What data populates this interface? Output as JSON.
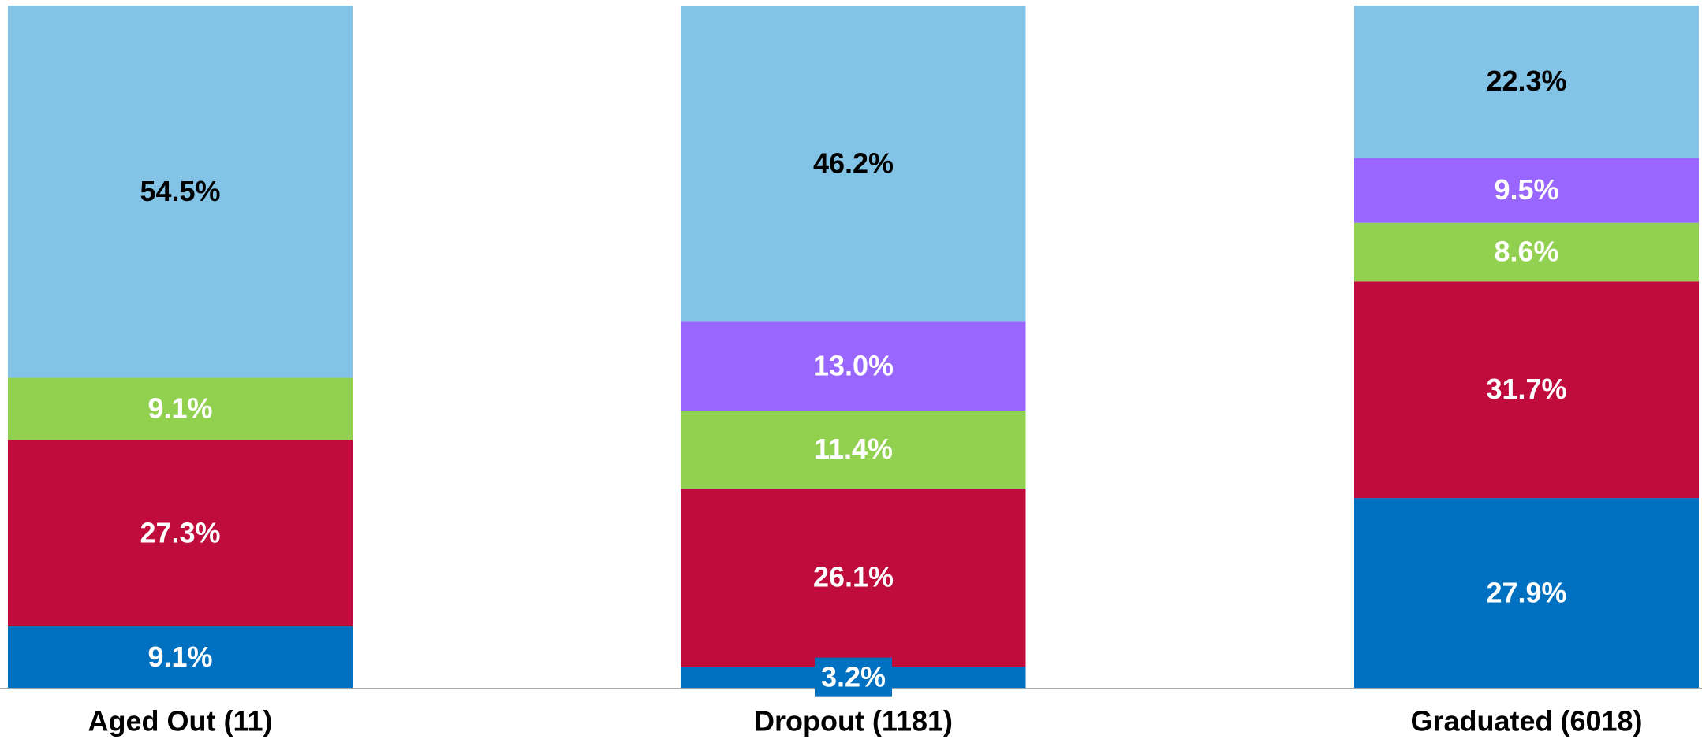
{
  "chart_data": {
    "type": "stacked_bar",
    "categories": [
      "Aged Out (11)",
      "Dropout (1181)",
      "Graduated (6018)"
    ],
    "series": [
      {
        "color": "#0070c0",
        "label_color": "#ffffff",
        "values": [
          9.1,
          3.2,
          27.9
        ],
        "value_labels": [
          "9.1%",
          "3.2%",
          "27.9%"
        ]
      },
      {
        "color": "#c00c3c",
        "label_color": "#ffffff",
        "values": [
          27.3,
          26.1,
          31.7
        ],
        "value_labels": [
          "27.3%",
          "26.1%",
          "31.7%"
        ]
      },
      {
        "color": "#92d050",
        "label_color": "#ffffff",
        "values": [
          9.1,
          11.4,
          8.6
        ],
        "value_labels": [
          "9.1%",
          "11.4%",
          "8.6%"
        ]
      },
      {
        "color": "#9966ff",
        "label_color": "#ffffff",
        "values": [
          null,
          13.0,
          9.5
        ],
        "value_labels": [
          null,
          "13.0%",
          "9.5%"
        ]
      },
      {
        "color": "#82c3e6",
        "label_color": "#000000",
        "values": [
          54.5,
          46.2,
          22.3
        ],
        "value_labels": [
          "54.5%",
          "46.2%",
          "22.3%"
        ]
      }
    ],
    "ylim": [
      0,
      100
    ]
  }
}
